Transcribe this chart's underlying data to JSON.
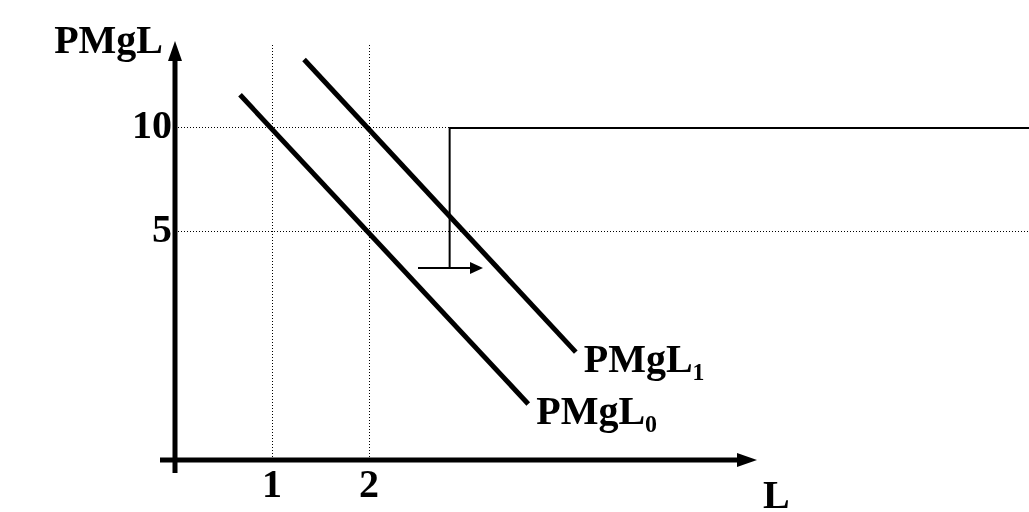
{
  "chart_data": {
    "type": "line",
    "xlabel": "L",
    "ylabel": "PMgL",
    "series": [
      {
        "name": "PMgL₀",
        "color": "#000000",
        "x": [
          0.67,
          3.64
        ],
        "values": [
          11.6,
          -3.3
        ]
      },
      {
        "name": "PMgL₁",
        "color": "#000000",
        "x": [
          1.33,
          4.13
        ],
        "values": [
          13.3,
          -0.8
        ]
      },
      {
        "color": "#000000",
        "x": [
          2.83,
          2.83,
          8.8
        ],
        "values": [
          3.3,
          10,
          10
        ]
      }
    ],
    "xlim": [
      0,
      8.8
    ],
    "ylim": [
      -6,
      14
    ],
    "xticks": [
      1,
      2
    ],
    "yticks": [
      5,
      10
    ],
    "grid": true,
    "line_style": "solid",
    "marker": "none",
    "legend": false
  }
}
